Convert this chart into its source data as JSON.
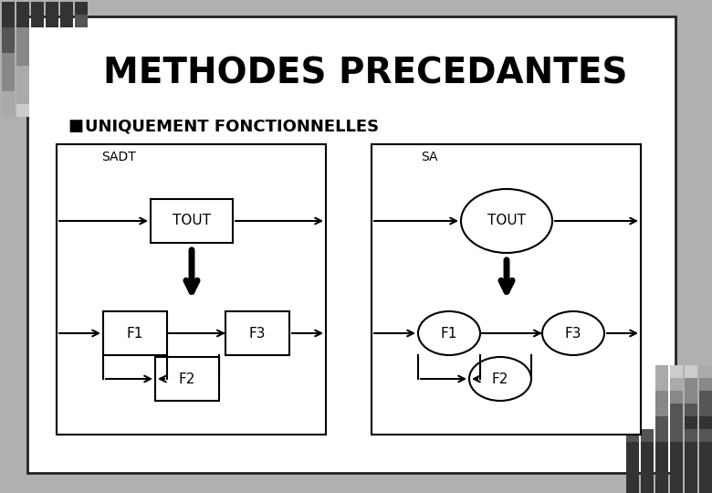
{
  "title": "METHODES PRECEDANTES",
  "subtitle": "UNIQUEMENT FONCTIONNELLES",
  "bg_outer": "#b0b0b0",
  "bg_inner": "#ffffff",
  "text_color": "#000000",
  "title_fontsize": 28,
  "subtitle_fontsize": 13,
  "sadt_label": "SADT",
  "sa_label": "SA",
  "checker_dark1": "#333333",
  "checker_dark2": "#555555",
  "checker_mid": "#888888",
  "checker_light": "#aaaaaa"
}
